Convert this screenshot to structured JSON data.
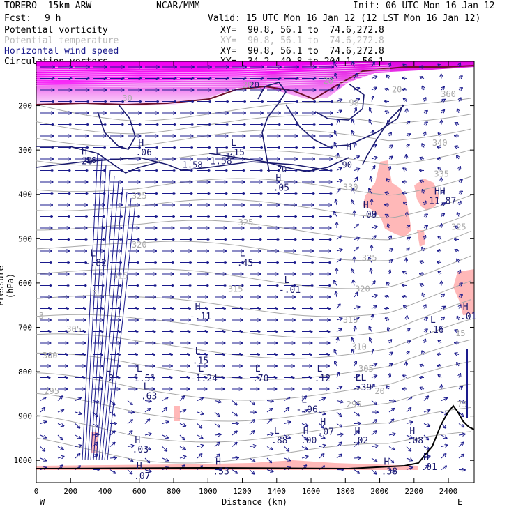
{
  "header": {
    "model": "TORERO  15km ARW",
    "org": "NCAR/MMM",
    "init": "Init: 06 UTC Mon 16 Jan 12",
    "fcst_label": "Fcst:",
    "fcst_value": "9 h",
    "valid": "Valid: 15 UTC Mon 16 Jan 12 (12 LST Mon 16 Jan 12)"
  },
  "legend": [
    {
      "label": "Potential vorticity",
      "xy": "XY=  90.8, 56.1 to  74.6,272.8",
      "color": "#a000a0"
    },
    {
      "label": "Potential temperature",
      "xy": "XY=  90.8, 56.1 to  74.6,272.8",
      "color": "#a8a8a8"
    },
    {
      "label": "Horizontal wind speed",
      "xy": "XY=  90.8, 56.1 to  74.6,272.8",
      "color": "#1a1a8c"
    },
    {
      "label": "Circulation vectors",
      "xy": "XY=  34.2, 49.8 to 204.1, 56.1",
      "color": "#000000"
    }
  ],
  "colors": {
    "pv_fill": "#ff00ff",
    "theta": "#a8a8a8",
    "wind_contour": "#1a1a6e",
    "vectors": "#1a1a8c",
    "pink_fill": "#ffb6b6",
    "terrain": "#000000",
    "tropopause": "#6b0f2a"
  },
  "chart_data": {
    "type": "vertical cross-section",
    "xlabel": "Distance (km)",
    "ylabel": "Pressure (hPa)",
    "xlim": [
      0,
      2550
    ],
    "ylim": [
      1050,
      100
    ],
    "x_ticks": [
      0,
      200,
      400,
      600,
      800,
      1000,
      1200,
      1400,
      1600,
      1800,
      2000,
      2200,
      2400
    ],
    "x_tick_labels": [
      "0",
      "200",
      "400",
      "600",
      "800",
      "1000",
      "1200",
      "1400",
      "1600",
      "1800",
      "2000",
      "2200",
      "2400"
    ],
    "y_ticks": [
      200,
      300,
      400,
      500,
      600,
      700,
      800,
      900,
      1000
    ],
    "y_tick_labels": [
      "200",
      "300",
      "400",
      "500",
      "600",
      "700",
      "800",
      "900",
      "1000"
    ],
    "west_label": "W",
    "east_label": "E",
    "theta_labels": [
      {
        "x": 1230,
        "p": 160,
        "t": "20"
      },
      {
        "x": 1700,
        "p": 150,
        "t": "20"
      },
      {
        "x": 2100,
        "p": 170,
        "t": "20"
      },
      {
        "x": 530,
        "p": 190,
        "t": "30"
      },
      {
        "x": 1850,
        "p": 200,
        "t": "98"
      },
      {
        "x": 2400,
        "p": 180,
        "t": "360"
      },
      {
        "x": 2350,
        "p": 290,
        "t": "340"
      },
      {
        "x": 2360,
        "p": 360,
        "t": "335"
      },
      {
        "x": 1830,
        "p": 390,
        "t": "330"
      },
      {
        "x": 600,
        "p": 410,
        "t": "325"
      },
      {
        "x": 1220,
        "p": 470,
        "t": "325"
      },
      {
        "x": 2460,
        "p": 480,
        "t": "325"
      },
      {
        "x": 600,
        "p": 520,
        "t": "320"
      },
      {
        "x": 1940,
        "p": 550,
        "t": "325"
      },
      {
        "x": 490,
        "p": 590,
        "t": "315"
      },
      {
        "x": 1160,
        "p": 620,
        "t": "315"
      },
      {
        "x": 1900,
        "p": 620,
        "t": "320"
      },
      {
        "x": 340,
        "p": 630,
        "t": "3"
      },
      {
        "x": 1830,
        "p": 690,
        "t": "315"
      },
      {
        "x": 220,
        "p": 710,
        "t": "305"
      },
      {
        "x": 1880,
        "p": 750,
        "t": "310"
      },
      {
        "x": 80,
        "p": 770,
        "t": "300"
      },
      {
        "x": 1920,
        "p": 800,
        "t": "305"
      },
      {
        "x": 90,
        "p": 850,
        "t": "295"
      },
      {
        "x": 1850,
        "p": 880,
        "t": "295"
      },
      {
        "x": 2470,
        "p": 720,
        "t": "15"
      },
      {
        "x": 2480,
        "p": 880,
        "t": "75"
      },
      {
        "x": 2000,
        "p": 850,
        "t": "20"
      },
      {
        "x": 30,
        "p": 680,
        "t": "3"
      }
    ],
    "wind_labels": [
      {
        "x": 320,
        "p": 330,
        "t": "26"
      },
      {
        "x": 910,
        "p": 340,
        "t": "1.58"
      },
      {
        "x": 1130,
        "p": 320,
        "t": "15"
      },
      {
        "x": 1430,
        "p": 350,
        "t": "20"
      },
      {
        "x": 1810,
        "p": 340,
        "t": "90"
      },
      {
        "x": 1270,
        "p": 160,
        "t": "20"
      }
    ],
    "extrema": [
      {
        "x": 280,
        "p": 310,
        "type": "H",
        "value": "26"
      },
      {
        "x": 610,
        "p": 290,
        "type": "H",
        "value": ".06"
      },
      {
        "x": 1060,
        "p": 310,
        "type": "L",
        "value": "1.58"
      },
      {
        "x": 1150,
        "p": 290,
        "type": "L",
        "value": ".15"
      },
      {
        "x": 1410,
        "p": 370,
        "type": "H",
        "value": ".05"
      },
      {
        "x": 1820,
        "p": 300,
        "type": "H",
        "value": ""
      },
      {
        "x": 1920,
        "p": 430,
        "type": "H",
        "value": ".09"
      },
      {
        "x": 2350,
        "p": 400,
        "type": "HH",
        "value": "11.87"
      },
      {
        "x": 330,
        "p": 540,
        "type": "L",
        "value": "-.82"
      },
      {
        "x": 1200,
        "p": 540,
        "type": "L",
        "value": ".45"
      },
      {
        "x": 1460,
        "p": 600,
        "type": "L",
        "value": "-.01"
      },
      {
        "x": 940,
        "p": 660,
        "type": "H",
        "value": "-.11"
      },
      {
        "x": 2500,
        "p": 660,
        "type": "H",
        "value": ".01"
      },
      {
        "x": 2310,
        "p": 690,
        "type": "L",
        "value": ".16"
      },
      {
        "x": 940,
        "p": 760,
        "type": "L",
        "value": ".15"
      },
      {
        "x": 420,
        "p": 800,
        "type": "L",
        "value": "2"
      },
      {
        "x": 600,
        "p": 800,
        "type": "L",
        "value": "-1.51"
      },
      {
        "x": 640,
        "p": 840,
        "type": "L",
        "value": ".63"
      },
      {
        "x": 960,
        "p": 800,
        "type": "L",
        "value": "-1.24"
      },
      {
        "x": 1290,
        "p": 800,
        "type": "L",
        "value": ".70"
      },
      {
        "x": 1650,
        "p": 800,
        "type": "L",
        "value": ".12"
      },
      {
        "x": 1890,
        "p": 820,
        "type": "LL",
        "value": ".39"
      },
      {
        "x": 1560,
        "p": 870,
        "type": "L",
        "value": "-.96"
      },
      {
        "x": 1400,
        "p": 940,
        "type": "L",
        "value": ".88"
      },
      {
        "x": 1570,
        "p": 940,
        "type": "H",
        "value": ".00"
      },
      {
        "x": 1670,
        "p": 920,
        "type": "H",
        "value": ".07"
      },
      {
        "x": 1870,
        "p": 940,
        "type": "H",
        "value": ".02"
      },
      {
        "x": 2190,
        "p": 940,
        "type": "H",
        "value": ".08"
      },
      {
        "x": 590,
        "p": 960,
        "type": "H",
        "value": ".03"
      },
      {
        "x": 600,
        "p": 1020,
        "type": "H",
        "value": ".07"
      },
      {
        "x": 1060,
        "p": 1010,
        "type": "H",
        "value": ".53"
      },
      {
        "x": 2040,
        "p": 1010,
        "type": "H",
        "value": ".38"
      },
      {
        "x": 2270,
        "p": 1000,
        "type": "H",
        "value": ".01"
      }
    ]
  }
}
